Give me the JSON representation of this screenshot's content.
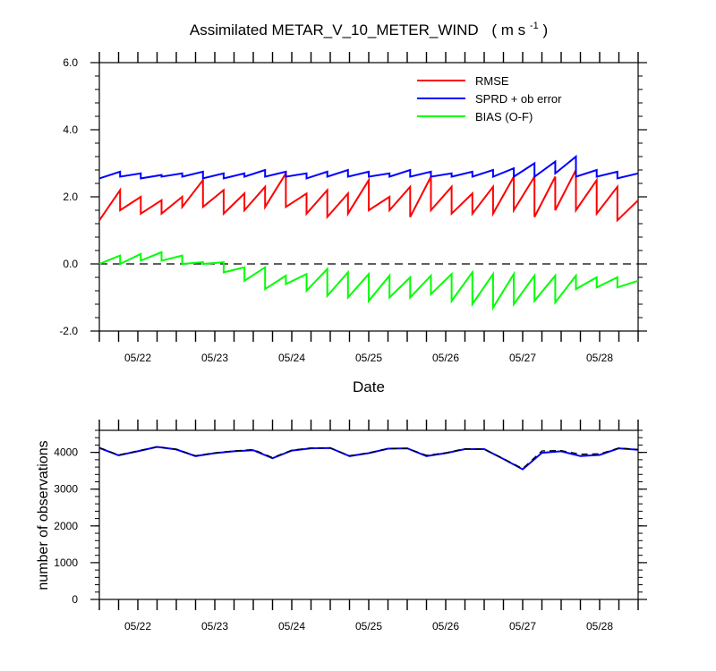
{
  "chart_data": [
    {
      "type": "line",
      "title": "Assimilated METAR_V_10_METER_WIND",
      "title_units_base": "( m s",
      "title_units_sup": "-1",
      "title_units_end": " )",
      "xlabel": "Date",
      "ylabel": "",
      "x_start": "05/21 12:00",
      "x_end": "05/28 12:00",
      "x_step_hours": 3,
      "xlim_days": [
        21.5,
        28.5
      ],
      "xticks": [
        "05/22",
        "05/23",
        "05/24",
        "05/25",
        "05/26",
        "05/27",
        "05/28"
      ],
      "xtick_days": [
        22,
        23,
        24,
        25,
        26,
        27,
        28
      ],
      "ylim": [
        -2.0,
        6.0
      ],
      "yticks": [
        -2.0,
        0.0,
        2.0,
        4.0,
        6.0
      ],
      "ytick_labels": [
        "-2.0",
        "0.0",
        "2.0",
        "4.0",
        "6.0"
      ],
      "zero_line": true,
      "legend_position": "top-right",
      "series": [
        {
          "name": "RMSE",
          "color": "#ff0000",
          "segments": [
            [
              1.3,
              2.2
            ],
            [
              1.6,
              2.0
            ],
            [
              1.5,
              1.9
            ],
            [
              1.5,
              2.0
            ],
            [
              1.7,
              2.5
            ],
            [
              1.7,
              2.2
            ],
            [
              1.5,
              2.1
            ],
            [
              1.6,
              2.3
            ],
            [
              1.7,
              2.7
            ],
            [
              1.7,
              2.1
            ],
            [
              1.5,
              2.2
            ],
            [
              1.4,
              2.1
            ],
            [
              1.5,
              2.5
            ],
            [
              1.6,
              2.0
            ],
            [
              1.6,
              2.3
            ],
            [
              1.4,
              2.6
            ],
            [
              1.6,
              2.3
            ],
            [
              1.5,
              2.1
            ],
            [
              1.5,
              2.3
            ],
            [
              1.5,
              2.6
            ],
            [
              1.6,
              2.6
            ],
            [
              1.4,
              2.6
            ],
            [
              1.6,
              2.8
            ],
            [
              1.6,
              2.5
            ],
            [
              1.5,
              2.3
            ],
            [
              1.3,
              1.9
            ]
          ]
        },
        {
          "name": "SPRD + ob error",
          "color": "#0000ff",
          "segments": [
            [
              2.55,
              2.75
            ],
            [
              2.6,
              2.7
            ],
            [
              2.55,
              2.65
            ],
            [
              2.6,
              2.7
            ],
            [
              2.6,
              2.75
            ],
            [
              2.55,
              2.7
            ],
            [
              2.55,
              2.7
            ],
            [
              2.6,
              2.8
            ],
            [
              2.6,
              2.75
            ],
            [
              2.6,
              2.7
            ],
            [
              2.55,
              2.75
            ],
            [
              2.6,
              2.8
            ],
            [
              2.6,
              2.75
            ],
            [
              2.6,
              2.7
            ],
            [
              2.6,
              2.8
            ],
            [
              2.6,
              2.75
            ],
            [
              2.6,
              2.7
            ],
            [
              2.6,
              2.75
            ],
            [
              2.6,
              2.8
            ],
            [
              2.6,
              2.85
            ],
            [
              2.6,
              3.0
            ],
            [
              2.6,
              3.05
            ],
            [
              2.7,
              3.2
            ],
            [
              2.6,
              2.8
            ],
            [
              2.6,
              2.75
            ],
            [
              2.55,
              2.7
            ]
          ]
        },
        {
          "name": "BIAS (O-F)",
          "color": "#00ff00",
          "segments": [
            [
              0.0,
              0.25
            ],
            [
              0.0,
              0.3
            ],
            [
              0.1,
              0.35
            ],
            [
              0.1,
              0.25
            ],
            [
              0.0,
              0.05
            ],
            [
              0.0,
              0.05
            ],
            [
              -0.25,
              -0.1
            ],
            [
              -0.5,
              -0.1
            ],
            [
              -0.75,
              -0.35
            ],
            [
              -0.6,
              -0.3
            ],
            [
              -0.8,
              -0.15
            ],
            [
              -0.95,
              -0.25
            ],
            [
              -1.0,
              -0.3
            ],
            [
              -1.1,
              -0.35
            ],
            [
              -1.0,
              -0.4
            ],
            [
              -1.0,
              -0.35
            ],
            [
              -0.9,
              -0.3
            ],
            [
              -1.1,
              -0.25
            ],
            [
              -1.2,
              -0.3
            ],
            [
              -1.3,
              -0.3
            ],
            [
              -1.2,
              -0.35
            ],
            [
              -1.1,
              -0.35
            ],
            [
              -1.15,
              -0.35
            ],
            [
              -0.75,
              -0.4
            ],
            [
              -0.7,
              -0.4
            ],
            [
              -0.7,
              -0.5
            ]
          ]
        }
      ]
    },
    {
      "type": "line",
      "title": "",
      "xlabel": "",
      "ylabel": "number of observations",
      "xlim_days": [
        21.5,
        28.5
      ],
      "xticks": [
        "05/22",
        "05/23",
        "05/24",
        "05/25",
        "05/26",
        "05/27",
        "05/28"
      ],
      "xtick_days": [
        22,
        23,
        24,
        25,
        26,
        27,
        28
      ],
      "ylim": [
        0,
        4600
      ],
      "yticks": [
        0,
        1000,
        2000,
        3000,
        4000
      ],
      "ytick_labels": [
        "0",
        "1000",
        "2000",
        "3000",
        "4000"
      ],
      "series": [
        {
          "name": "",
          "color": "#0000ff",
          "style": "solid",
          "x_days": [
            21.5,
            21.75,
            22.0,
            22.25,
            22.5,
            22.75,
            23.0,
            23.25,
            23.5,
            23.75,
            24.0,
            24.25,
            24.5,
            24.75,
            25.0,
            25.25,
            25.5,
            25.75,
            26.0,
            26.25,
            26.5,
            26.75,
            27.0,
            27.25,
            27.5,
            27.75,
            28.0,
            28.25,
            28.5
          ],
          "values": [
            4120,
            3920,
            4030,
            4150,
            4080,
            3900,
            3980,
            4030,
            4060,
            3840,
            4050,
            4110,
            4120,
            3900,
            3980,
            4100,
            4110,
            3900,
            3980,
            4090,
            4090,
            3820,
            3540,
            3990,
            4030,
            3900,
            3930,
            4110,
            4070
          ]
        },
        {
          "name": "",
          "color": "#000000",
          "style": "dashed",
          "x_days": [
            21.5,
            21.75,
            22.0,
            22.25,
            22.5,
            22.75,
            23.0,
            23.25,
            23.5,
            23.75,
            24.0,
            24.25,
            24.5,
            24.75,
            25.0,
            25.25,
            25.5,
            25.75,
            26.0,
            26.25,
            26.5,
            26.75,
            27.0,
            27.25,
            27.5,
            27.75,
            28.0,
            28.25,
            28.5
          ],
          "values": [
            4130,
            3930,
            4040,
            4150,
            4090,
            3910,
            3990,
            4040,
            4080,
            3860,
            4060,
            4120,
            4120,
            3910,
            3990,
            4100,
            4110,
            3920,
            3990,
            4100,
            4090,
            3830,
            3560,
            4040,
            4050,
            3950,
            3960,
            4120,
            4080
          ]
        }
      ]
    }
  ]
}
